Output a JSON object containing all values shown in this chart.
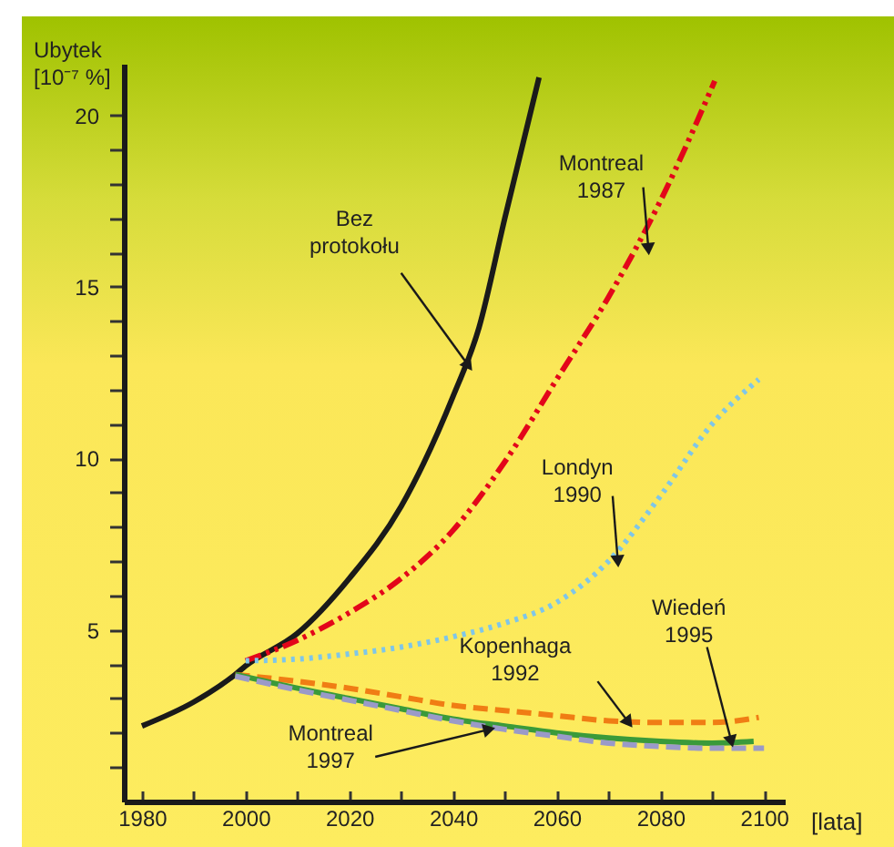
{
  "chart_data": {
    "type": "line",
    "xlabel": "[lata]",
    "ylabel": "Ubytek [10⁻⁷ %]",
    "xlim": [
      1976.5,
      2104
    ],
    "ylim": [
      0,
      21.5
    ],
    "xticks": [
      1980,
      {
        "value": 1990,
        "label": null
      },
      2000,
      {
        "value": 2010,
        "label": null
      },
      2020,
      {
        "value": 2030,
        "label": null
      },
      2040,
      {
        "value": 2050,
        "label": null
      },
      2060,
      {
        "value": 2070,
        "label": null
      },
      2080,
      {
        "value": 2090,
        "label": null
      },
      2100
    ],
    "yticks": [
      {
        "value": 1,
        "label": null
      },
      {
        "value": 2,
        "label": null
      },
      {
        "value": 3,
        "label": null
      },
      {
        "value": 4,
        "label": null
      },
      5,
      {
        "value": 6,
        "label": null
      },
      {
        "value": 7,
        "label": null
      },
      {
        "value": 8,
        "label": null
      },
      {
        "value": 9,
        "label": null
      },
      10,
      {
        "value": 11,
        "label": null
      },
      {
        "value": 12,
        "label": null
      },
      {
        "value": 13,
        "label": null
      },
      {
        "value": 14,
        "label": null
      },
      15,
      {
        "value": 16,
        "label": null
      },
      {
        "value": 17,
        "label": null
      },
      {
        "value": 18,
        "label": null
      },
      {
        "value": 19,
        "label": null
      },
      20
    ],
    "grid": false,
    "legend": false,
    "marker": "none",
    "series": [
      {
        "color": "#1a1a1a",
        "line_style": "solid",
        "x": [
          1980,
          1990,
          1998,
          2000,
          2010,
          2020,
          2030,
          2040,
          2045,
          2050,
          2056.6
        ],
        "values": [
          2.2,
          2.9,
          3.7,
          3.95,
          4.9,
          6.5,
          8.6,
          11.8,
          13.8,
          17.0,
          21.1
        ]
      },
      {
        "color": "#e3061a",
        "line_style": "dashdot",
        "x": [
          2000,
          2010,
          2020,
          2030,
          2040,
          2050,
          2060,
          2070,
          2080,
          2090.5
        ],
        "values": [
          4.1,
          4.7,
          5.5,
          6.5,
          7.9,
          9.9,
          12.3,
          14.7,
          17.5,
          21.0
        ]
      },
      {
        "color": "#7fc6e8",
        "line_style": "dotted",
        "x": [
          2000,
          2010,
          2020,
          2030,
          2040,
          2050,
          2060,
          2070,
          2080,
          2090,
          2099
        ],
        "values": [
          4.1,
          4.15,
          4.3,
          4.5,
          4.8,
          5.2,
          5.8,
          7.0,
          8.9,
          11.0,
          12.3
        ]
      },
      {
        "color": "#f07d14",
        "line_style": "dashed",
        "x": [
          1998,
          2010,
          2020,
          2030,
          2040,
          2050,
          2060,
          2070,
          2080,
          2090,
          2099
        ],
        "values": [
          3.7,
          3.5,
          3.3,
          3.05,
          2.8,
          2.65,
          2.5,
          2.35,
          2.3,
          2.3,
          2.45
        ]
      },
      {
        "color": "#3a9a3a",
        "line_style": "solid",
        "x": [
          1998,
          2010,
          2020,
          2030,
          2040,
          2050,
          2060,
          2070,
          2080,
          2090,
          2098
        ],
        "values": [
          3.7,
          3.3,
          3.0,
          2.7,
          2.4,
          2.2,
          2.0,
          1.85,
          1.75,
          1.7,
          1.75
        ]
      },
      {
        "color": "#9a9ac8",
        "line_style": "dashed",
        "x": [
          1998,
          2010,
          2020,
          2030,
          2040,
          2050,
          2060,
          2070,
          2080,
          2090,
          2100
        ],
        "values": [
          3.65,
          3.25,
          2.95,
          2.65,
          2.35,
          2.1,
          1.9,
          1.7,
          1.6,
          1.55,
          1.55
        ]
      }
    ],
    "annotations": [
      {
        "text": "Bez protokołu",
        "x": 2043,
        "y": 12.7
      },
      {
        "text": "Montreal 1987",
        "x": 2077.7,
        "y": 16.1
      },
      {
        "text": "Londyn 1990",
        "x": 2071.8,
        "y": 7.0
      },
      {
        "text": "Kopenhaga 1992",
        "x": 2073.9,
        "y": 2.3
      },
      {
        "text": "Wiedeń 1995",
        "x": 2093.7,
        "y": 1.75
      },
      {
        "text": "Montreal 1997",
        "x": 2047,
        "y": 2.1
      }
    ]
  }
}
